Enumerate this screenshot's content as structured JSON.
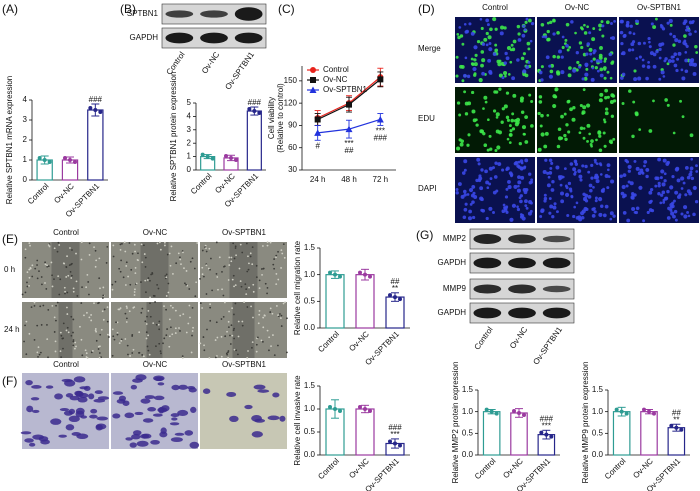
{
  "figure": {
    "panel_labels": [
      "(A)",
      "(B)",
      "(C)",
      "(D)",
      "(E)",
      "(F)",
      "(G)"
    ],
    "blot_b": {
      "rows": [
        "SPTBN1",
        "GAPDH"
      ],
      "columns": [
        "Control",
        "Ov-NC",
        "Ov-SPTBN1"
      ]
    },
    "microscopy_d": {
      "columns": [
        "Control",
        "Ov-NC",
        "Ov-SPTBN1"
      ],
      "rows": [
        "Merge",
        "EDU",
        "DAPI"
      ]
    },
    "wound_e": {
      "columns": [
        "Control",
        "Ov-NC",
        "Ov-SPTBN1"
      ],
      "rows": [
        "0 h",
        "24 h"
      ]
    },
    "transwell_f": {
      "columns": [
        "Control",
        "Ov-NC",
        "Ov-SPTBN1"
      ]
    },
    "blot_g": {
      "rows": [
        "MMP2",
        "GAPDH",
        "MMP9",
        "GAPDH"
      ],
      "columns": [
        "Control",
        "Ov-NC",
        "Ov-SPTBN1"
      ]
    }
  },
  "chart_data": [
    {
      "type": "bar",
      "ylabel": "Relative SPTBN1 mRNA expression",
      "categories": [
        "Control",
        "Ov-NC",
        "Ov-SPTBN1"
      ],
      "values": [
        1.0,
        1.0,
        3.5
      ],
      "errors": [
        0.2,
        0.15,
        0.3
      ],
      "colors": [
        "#2e9c93",
        "#9b3aa0",
        "#26268a"
      ],
      "annotations": [
        null,
        null,
        [
          "###"
        ]
      ],
      "ylim": [
        0,
        4
      ],
      "yticks": [
        0,
        1,
        2,
        3,
        4
      ]
    },
    {
      "type": "bar",
      "ylabel": "Relative SPTBN1 protein expression",
      "categories": [
        "Control",
        "Ov-NC",
        "Ov-SPTBN1"
      ],
      "values": [
        1.0,
        0.9,
        4.4
      ],
      "errors": [
        0.15,
        0.2,
        0.3
      ],
      "colors": [
        "#2e9c93",
        "#9b3aa0",
        "#26268a"
      ],
      "annotations": [
        null,
        null,
        [
          "###"
        ]
      ],
      "ylim": [
        0,
        5
      ],
      "yticks": [
        0,
        1,
        2,
        3,
        4,
        5
      ]
    },
    {
      "type": "line",
      "ylabel": [
        "Cell viability",
        "(Relative to control)"
      ],
      "categories": [
        "24 h",
        "48 h",
        "72 h"
      ],
      "series": [
        {
          "name": "Control",
          "color": "#e8231c",
          "marker": "circle",
          "values": [
            100,
            120,
            155
          ],
          "errors": [
            10,
            10,
            12
          ]
        },
        {
          "name": "Ov-NC",
          "color": "#111111",
          "marker": "square",
          "values": [
            98,
            118,
            152
          ],
          "errors": [
            8,
            10,
            10
          ]
        },
        {
          "name": "Ov-SPTBN1",
          "color": "#2233dd",
          "marker": "triangle",
          "values": [
            80,
            85,
            98
          ],
          "errors": [
            10,
            12,
            8
          ],
          "annotations": [
            [
              "#"
            ],
            [
              "***",
              "##"
            ],
            [
              "***",
              "###"
            ]
          ]
        }
      ],
      "ylim": [
        30,
        170
      ],
      "yticks": [
        30,
        60,
        90,
        120,
        150
      ]
    },
    {
      "type": "bar",
      "ylabel": "Relative cell migration rate",
      "categories": [
        "Control",
        "Ov-NC",
        "Ov-SPTBN1"
      ],
      "values": [
        1.0,
        1.0,
        0.58
      ],
      "errors": [
        0.07,
        0.1,
        0.08
      ],
      "colors": [
        "#2e9c93",
        "#9b3aa0",
        "#26268a"
      ],
      "annotations": [
        null,
        null,
        [
          "##",
          "**"
        ]
      ],
      "ylim": [
        0,
        1.5
      ],
      "yticks": [
        {
          "value": 0,
          "label": "0.0"
        },
        0.5,
        {
          "value": 1,
          "label": "1.0"
        },
        1.5
      ]
    },
    {
      "type": "bar",
      "ylabel": "Relative cell invasive rate",
      "categories": [
        "Control",
        "Ov-NC",
        "Ov-SPTBN1"
      ],
      "values": [
        1.0,
        1.0,
        0.25
      ],
      "errors": [
        0.2,
        0.08,
        0.1
      ],
      "colors": [
        "#2e9c93",
        "#9b3aa0",
        "#26268a"
      ],
      "annotations": [
        null,
        null,
        [
          "###",
          "***"
        ]
      ],
      "ylim": [
        0,
        1.5
      ],
      "yticks": [
        {
          "value": 0,
          "label": "0.0"
        },
        0.5,
        {
          "value": 1,
          "label": "1.0"
        },
        1.5
      ]
    },
    {
      "type": "bar",
      "ylabel": "Relative MMP2 protein expression",
      "categories": [
        "Control",
        "Ov-NC",
        "Ov-SPTBN1"
      ],
      "values": [
        1.0,
        0.97,
        0.47
      ],
      "errors": [
        0.05,
        0.1,
        0.1
      ],
      "colors": [
        "#2e9c93",
        "#9b3aa0",
        "#26268a"
      ],
      "annotations": [
        null,
        null,
        [
          "###",
          "***"
        ]
      ],
      "ylim": [
        0,
        1.5
      ],
      "yticks": [
        {
          "value": 0,
          "label": "0.0"
        },
        0.5,
        {
          "value": 1,
          "label": "1.0"
        },
        1.5
      ]
    },
    {
      "type": "bar",
      "ylabel": "Relative MMP9 protein expression",
      "categories": [
        "Control",
        "Ov-NC",
        "Ov-SPTBN1"
      ],
      "values": [
        1.0,
        1.0,
        0.63
      ],
      "errors": [
        0.1,
        0.05,
        0.08
      ],
      "colors": [
        "#2e9c93",
        "#9b3aa0",
        "#26268a"
      ],
      "annotations": [
        null,
        null,
        [
          "##",
          "**"
        ]
      ],
      "ylim": [
        0,
        1.5
      ],
      "yticks": [
        {
          "value": 0,
          "label": "0.0"
        },
        0.5,
        {
          "value": 1,
          "label": "1.0"
        },
        1.5
      ]
    }
  ]
}
